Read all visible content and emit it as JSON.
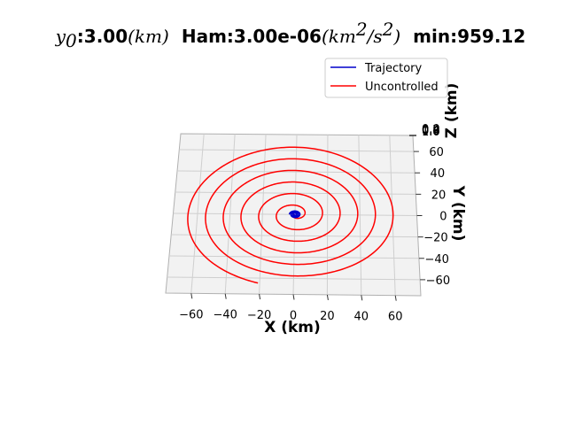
{
  "title": {
    "y0_symbol": "y",
    "y0_subscript": "0",
    "y0_value": ":3.00",
    "y0_unit": "(km)",
    "ham_label": "Ham:3.00e-06",
    "ham_unit_open": "(km",
    "ham_unit_exp1": "2",
    "ham_unit_mid": "/s",
    "ham_unit_exp2": "2",
    "ham_unit_close": ")",
    "min_label": "min:959.12"
  },
  "chart_data": {
    "type": "line",
    "projection": "3d",
    "xlabel": "X (km)",
    "ylabel": "Y (km)",
    "zlabel": "Z (km)",
    "x_ticks": [
      "−60",
      "−40",
      "−20",
      "0",
      "20",
      "40",
      "60"
    ],
    "y_ticks": [
      "60",
      "40",
      "20",
      "0",
      "−20",
      "−40",
      "−60"
    ],
    "z_ticks": [
      "0.0",
      "0.2",
      "0.4",
      "0.6",
      "0.8",
      "1.0"
    ],
    "xlim": [
      -75,
      75
    ],
    "ylim": [
      -75,
      75
    ],
    "grid": true,
    "legend_position": "top-right",
    "series": [
      {
        "name": "Trajectory",
        "color": "#0000cc",
        "shape": "tight spiral around origin",
        "spiral": {
          "center": [
            0,
            0
          ],
          "r_start": 0.5,
          "r_end": 3.5,
          "turns": 3
        }
      },
      {
        "name": "Uncontrolled",
        "color": "#ff0000",
        "shape": "outward spiral",
        "spiral": {
          "center": [
            0,
            0
          ],
          "r_start": 0.5,
          "r_end": 68,
          "turns": 6.2
        }
      }
    ]
  }
}
